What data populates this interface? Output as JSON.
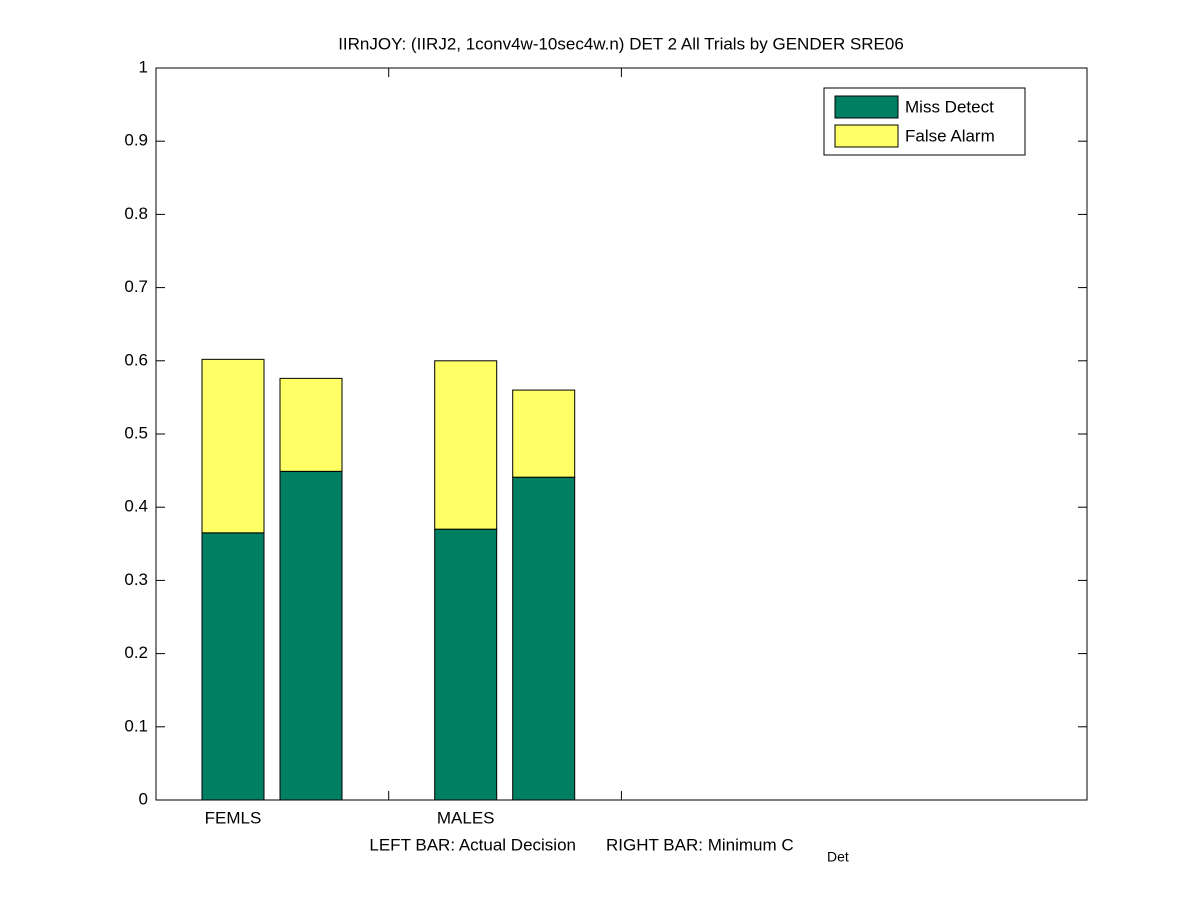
{
  "chart_data": {
    "type": "stacked_bar",
    "title": "IIRnJOY: (IIRJ2, 1conv4w-10sec4w.n) DET 2 All Trials by GENDER SRE06",
    "categories": [
      "FEMLS",
      null,
      "MALES",
      null
    ],
    "series": [
      {
        "name": "Miss Detect",
        "color": "#007f63",
        "values": [
          0.365,
          0.449,
          0.37,
          0.441
        ]
      },
      {
        "name": "False Alarm",
        "color": "#ffff66",
        "values": [
          0.237,
          0.127,
          0.23,
          0.119
        ]
      }
    ],
    "xlabel_left": "LEFT BAR: Actual Decision",
    "xlabel_right": "RIGHT BAR: Minimum C",
    "xlabel_right_sub": "Det",
    "ylim": [
      0,
      1
    ],
    "yticks": [
      0,
      0.1,
      0.2,
      0.3,
      0.4,
      0.5,
      0.6,
      0.7,
      0.8,
      0.9,
      1
    ],
    "legend": "top-right"
  }
}
